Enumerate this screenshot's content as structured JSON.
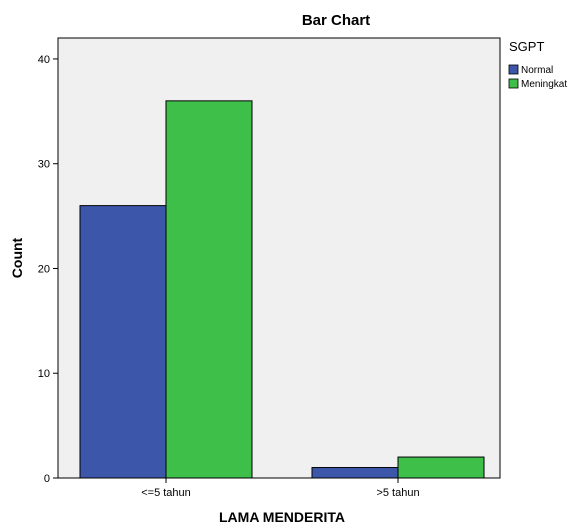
{
  "chart_data": {
    "type": "bar",
    "title": "Bar Chart",
    "xlabel": "LAMA MENDERITA",
    "ylabel": "Count",
    "categories": [
      "<=5 tahun",
      ">5 tahun"
    ],
    "series": [
      {
        "name": "Normal",
        "values": [
          26,
          1
        ],
        "color": "#3c56aa"
      },
      {
        "name": "Meningkat",
        "values": [
          36,
          2
        ],
        "color": "#3dbf4a"
      }
    ],
    "ylim": [
      0,
      42
    ],
    "yticks": [
      0,
      10,
      20,
      30,
      40
    ],
    "grid": false,
    "legend": {
      "title": "SGPT",
      "position": "right"
    },
    "plot_background": "#f0f0f0"
  }
}
